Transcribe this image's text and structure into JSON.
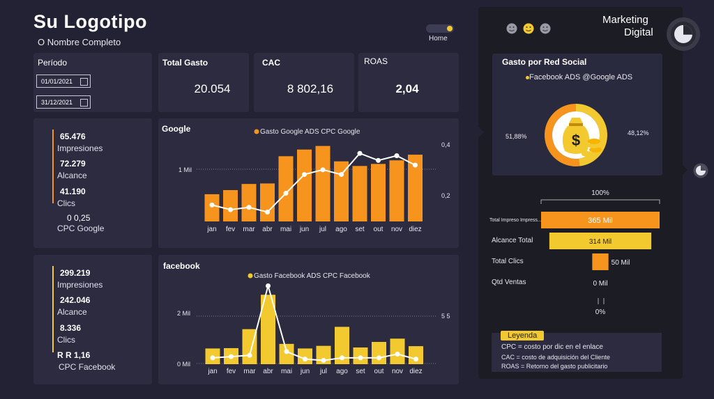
{
  "header": {
    "title": "Su Logotipo",
    "subtitle": "O Nombre Completo",
    "home_label": "Home"
  },
  "period": {
    "label": "Período",
    "start": "01/01/2021",
    "end": "31/12/2021"
  },
  "kpis": {
    "total_gasto": {
      "label": "Total Gasto",
      "value": "20.054"
    },
    "cac": {
      "label": "CAC",
      "value": "8 802,16"
    },
    "roas": {
      "label": "ROAS",
      "value": "2,04"
    }
  },
  "google_stats": {
    "impresiones": {
      "value": "65.476",
      "label": "Impresiones"
    },
    "alcance": {
      "value": "72.279",
      "label": "Alcance"
    },
    "clics": {
      "value": "41.190",
      "label": "Clics"
    },
    "cpc": {
      "value": "0 0,25",
      "label": "CPC Google"
    }
  },
  "facebook_stats": {
    "impresiones": {
      "value": "299.219",
      "label": "Impresiones"
    },
    "alcance": {
      "value": "242.046",
      "label": "Alcance"
    },
    "clics": {
      "value": "8.336",
      "label": "Clics"
    },
    "cpc": {
      "value": "R R 1,16",
      "label": "CPC Facebook"
    }
  },
  "right": {
    "title_line1": "Marketing",
    "title_line2": "Digital",
    "donut_title": "Gasto por Red Social",
    "donut_legend": "Facebook ADS @Google ADS",
    "funnel_top_pct": "100%",
    "funnel_bottom_pct": "0%",
    "legend_title": "Leyenda",
    "legend_lines": [
      "CPC = costo por dic en el enlace",
      "CAC = costo de adquisición del Cliente",
      "ROAS = Retorno del gasto publicitario"
    ]
  },
  "colors": {
    "orange": "#f7941d",
    "yellow": "#f3c930",
    "bg": "#232235",
    "card": "#2c2b40"
  },
  "chart_data": [
    {
      "type": "bar",
      "title": "Google",
      "legend": "Gasto Google ADS CPC Google",
      "categories": [
        "jan",
        "fev",
        "mar",
        "abr",
        "mai",
        "jun",
        "jul",
        "ago",
        "set",
        "out",
        "nov",
        "diez"
      ],
      "y_tick_labels": [
        "1 Mil"
      ],
      "y2_tick_labels": [
        "0,4",
        "0,2"
      ],
      "ylim": [
        0,
        1600
      ],
      "y2lim": [
        0.1,
        0.45
      ],
      "series": [
        {
          "name": "Gasto Google ADS",
          "kind": "bar",
          "color": "#f7941d",
          "values": [
            530,
            610,
            730,
            740,
            1270,
            1400,
            1470,
            1170,
            1080,
            1120,
            1190,
            1300
          ]
        },
        {
          "name": "CPC Google",
          "kind": "line",
          "color": "#ffffff",
          "values": [
            0.17,
            0.15,
            0.16,
            0.14,
            0.22,
            0.3,
            0.32,
            0.3,
            0.39,
            0.36,
            0.38,
            0.34
          ]
        }
      ]
    },
    {
      "type": "bar",
      "title": "facebook",
      "legend": "Gasto Facebook ADS CPC Facebook",
      "categories": [
        "jan",
        "fev",
        "mar",
        "abr",
        "mai",
        "jun",
        "jul",
        "ago",
        "set",
        "out",
        "nov",
        "diez"
      ],
      "y_tick_labels": [
        "2 Mil",
        "0 Mil"
      ],
      "y2_tick_labels": [
        "5 5"
      ],
      "ylim": [
        0,
        2700
      ],
      "y2lim": [
        0,
        7
      ],
      "series": [
        {
          "name": "Gasto Facebook ADS",
          "kind": "bar",
          "color": "#f3c930",
          "values": [
            480,
            490,
            1070,
            2120,
            620,
            480,
            560,
            1140,
            510,
            680,
            780,
            550
          ]
        },
        {
          "name": "CPC Facebook",
          "kind": "line",
          "color": "#ffffff",
          "values": [
            0.5,
            0.6,
            0.7,
            6.2,
            1.0,
            0.4,
            0.3,
            0.5,
            0.5,
            0.5,
            0.8,
            0.4
          ]
        }
      ]
    },
    {
      "type": "pie",
      "title": "Gasto por Red Social",
      "categories": [
        "Facebook ADS",
        "Google ADS"
      ],
      "values": [
        51.88,
        48.12
      ],
      "value_labels": [
        "51,88%",
        "48,12%"
      ],
      "colors": [
        "#f7941d",
        "#f3c930"
      ]
    },
    {
      "type": "bar",
      "orientation": "horizontal",
      "categories": [
        "Total Impreso Impress...",
        "Alcance Total",
        "Total Clics",
        "Qtd Ventas"
      ],
      "values": [
        365,
        314,
        50,
        0
      ],
      "value_labels": [
        "365 Mil",
        "314 Mil",
        "50 Mil",
        "0 Mil"
      ],
      "colors": [
        "#f7941d",
        "#f3c930",
        "#f7941d",
        "#f3c930"
      ]
    }
  ]
}
